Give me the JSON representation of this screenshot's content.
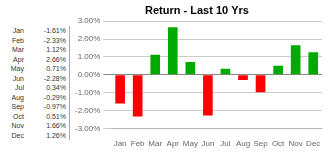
{
  "chart_data": {
    "type": "bar",
    "title": "Return - Last 10 Yrs",
    "categories": [
      "Jan",
      "Feb",
      "Mar",
      "Apr",
      "May",
      "Jun",
      "Jul",
      "Aug",
      "Sep",
      "Oct",
      "Nov",
      "Dec"
    ],
    "values": [
      -1.61,
      -2.33,
      1.12,
      2.66,
      0.71,
      -2.28,
      0.34,
      -0.29,
      -0.97,
      0.51,
      1.66,
      1.26
    ],
    "value_labels": [
      "-1.61%",
      "-2.33%",
      "1.12%",
      "2.66%",
      "0.71%",
      "-2.28%",
      "0.34%",
      "-0.29%",
      "-0.97%",
      "0.51%",
      "1.66%",
      "1.26%"
    ],
    "colors": [
      "#FF0000",
      "#FF0000",
      "#00AA00",
      "#00AA00",
      "#00AA00",
      "#FF0000",
      "#00AA00",
      "#FF0000",
      "#FF0000",
      "#00AA00",
      "#00AA00",
      "#00AA00"
    ],
    "ylim": [
      -3.0,
      3.0
    ],
    "yticks": [
      {
        "value": -3.0,
        "label": "-3.00%"
      },
      {
        "value": -2.0,
        "label": "-2.00%"
      },
      {
        "value": -1.0,
        "label": "-1.00%"
      },
      {
        "value": 0.0,
        "label": "0.00%"
      },
      {
        "value": 1.0,
        "label": "1.00%"
      },
      {
        "value": 2.0,
        "label": "2.00%"
      },
      {
        "value": 3.0,
        "label": "3.00%"
      }
    ],
    "grid": true
  }
}
